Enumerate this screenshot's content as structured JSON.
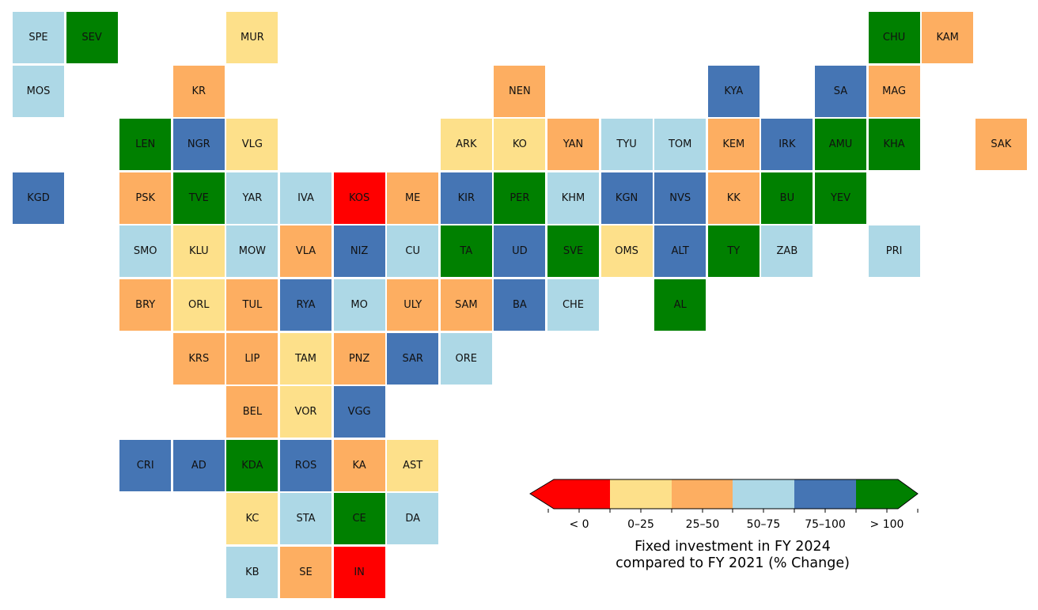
{
  "legend": {
    "title": "Fixed investment in FY 2024\ncompared to FY 2021 (% Change)",
    "categories": [
      {
        "key": "lt0",
        "label": "< 0",
        "color": "#ff0000"
      },
      {
        "key": "0-25",
        "label": "0–25",
        "color": "#fde08a"
      },
      {
        "key": "25-50",
        "label": "25–50",
        "color": "#fdae61"
      },
      {
        "key": "50-75",
        "label": "50–75",
        "color": "#add8e6"
      },
      {
        "key": "75-100",
        "label": "75–100",
        "color": "#4575b4"
      },
      {
        "key": "gt100",
        "label": "> 100",
        "color": "#008000"
      }
    ]
  },
  "regions": [
    {
      "code": "SPE",
      "row": 0,
      "col": 0,
      "cat": "50-75"
    },
    {
      "code": "SEV",
      "row": 0,
      "col": 1,
      "cat": "gt100"
    },
    {
      "code": "MUR",
      "row": 0,
      "col": 4,
      "cat": "0-25"
    },
    {
      "code": "CHU",
      "row": 0,
      "col": 16,
      "cat": "gt100"
    },
    {
      "code": "KAM",
      "row": 0,
      "col": 17,
      "cat": "25-50"
    },
    {
      "code": "MOS",
      "row": 1,
      "col": 0,
      "cat": "50-75"
    },
    {
      "code": "KR",
      "row": 1,
      "col": 3,
      "cat": "25-50"
    },
    {
      "code": "NEN",
      "row": 1,
      "col": 9,
      "cat": "25-50"
    },
    {
      "code": "KYA",
      "row": 1,
      "col": 13,
      "cat": "75-100"
    },
    {
      "code": "SA",
      "row": 1,
      "col": 15,
      "cat": "75-100"
    },
    {
      "code": "MAG",
      "row": 1,
      "col": 16,
      "cat": "25-50"
    },
    {
      "code": "LEN",
      "row": 2,
      "col": 2,
      "cat": "gt100"
    },
    {
      "code": "NGR",
      "row": 2,
      "col": 3,
      "cat": "75-100"
    },
    {
      "code": "VLG",
      "row": 2,
      "col": 4,
      "cat": "0-25"
    },
    {
      "code": "ARK",
      "row": 2,
      "col": 8,
      "cat": "0-25"
    },
    {
      "code": "KO",
      "row": 2,
      "col": 9,
      "cat": "0-25"
    },
    {
      "code": "YAN",
      "row": 2,
      "col": 10,
      "cat": "25-50"
    },
    {
      "code": "TYU",
      "row": 2,
      "col": 11,
      "cat": "50-75"
    },
    {
      "code": "TOM",
      "row": 2,
      "col": 12,
      "cat": "50-75"
    },
    {
      "code": "KEM",
      "row": 2,
      "col": 13,
      "cat": "25-50"
    },
    {
      "code": "IRK",
      "row": 2,
      "col": 14,
      "cat": "75-100"
    },
    {
      "code": "AMU",
      "row": 2,
      "col": 15,
      "cat": "gt100"
    },
    {
      "code": "KHA",
      "row": 2,
      "col": 16,
      "cat": "gt100"
    },
    {
      "code": "SAK",
      "row": 2,
      "col": 18,
      "cat": "25-50"
    },
    {
      "code": "KGD",
      "row": 3,
      "col": 0,
      "cat": "75-100"
    },
    {
      "code": "PSK",
      "row": 3,
      "col": 2,
      "cat": "25-50"
    },
    {
      "code": "TVE",
      "row": 3,
      "col": 3,
      "cat": "gt100"
    },
    {
      "code": "YAR",
      "row": 3,
      "col": 4,
      "cat": "50-75"
    },
    {
      "code": "IVA",
      "row": 3,
      "col": 5,
      "cat": "50-75"
    },
    {
      "code": "KOS",
      "row": 3,
      "col": 6,
      "cat": "lt0"
    },
    {
      "code": "ME",
      "row": 3,
      "col": 7,
      "cat": "25-50"
    },
    {
      "code": "KIR",
      "row": 3,
      "col": 8,
      "cat": "75-100"
    },
    {
      "code": "PER",
      "row": 3,
      "col": 9,
      "cat": "gt100"
    },
    {
      "code": "KHM",
      "row": 3,
      "col": 10,
      "cat": "50-75"
    },
    {
      "code": "KGN",
      "row": 3,
      "col": 11,
      "cat": "75-100"
    },
    {
      "code": "NVS",
      "row": 3,
      "col": 12,
      "cat": "75-100"
    },
    {
      "code": "KK",
      "row": 3,
      "col": 13,
      "cat": "25-50"
    },
    {
      "code": "BU",
      "row": 3,
      "col": 14,
      "cat": "gt100"
    },
    {
      "code": "YEV",
      "row": 3,
      "col": 15,
      "cat": "gt100"
    },
    {
      "code": "SMO",
      "row": 4,
      "col": 2,
      "cat": "50-75"
    },
    {
      "code": "KLU",
      "row": 4,
      "col": 3,
      "cat": "0-25"
    },
    {
      "code": "MOW",
      "row": 4,
      "col": 4,
      "cat": "50-75"
    },
    {
      "code": "VLA",
      "row": 4,
      "col": 5,
      "cat": "25-50"
    },
    {
      "code": "NIZ",
      "row": 4,
      "col": 6,
      "cat": "75-100"
    },
    {
      "code": "CU",
      "row": 4,
      "col": 7,
      "cat": "50-75"
    },
    {
      "code": "TA",
      "row": 4,
      "col": 8,
      "cat": "gt100"
    },
    {
      "code": "UD",
      "row": 4,
      "col": 9,
      "cat": "75-100"
    },
    {
      "code": "SVE",
      "row": 4,
      "col": 10,
      "cat": "gt100"
    },
    {
      "code": "OMS",
      "row": 4,
      "col": 11,
      "cat": "0-25"
    },
    {
      "code": "ALT",
      "row": 4,
      "col": 12,
      "cat": "75-100"
    },
    {
      "code": "TY",
      "row": 4,
      "col": 13,
      "cat": "gt100"
    },
    {
      "code": "ZAB",
      "row": 4,
      "col": 14,
      "cat": "50-75"
    },
    {
      "code": "PRI",
      "row": 4,
      "col": 16,
      "cat": "50-75"
    },
    {
      "code": "BRY",
      "row": 5,
      "col": 2,
      "cat": "25-50"
    },
    {
      "code": "ORL",
      "row": 5,
      "col": 3,
      "cat": "0-25"
    },
    {
      "code": "TUL",
      "row": 5,
      "col": 4,
      "cat": "25-50"
    },
    {
      "code": "RYA",
      "row": 5,
      "col": 5,
      "cat": "75-100"
    },
    {
      "code": "MO",
      "row": 5,
      "col": 6,
      "cat": "50-75"
    },
    {
      "code": "ULY",
      "row": 5,
      "col": 7,
      "cat": "25-50"
    },
    {
      "code": "SAM",
      "row": 5,
      "col": 8,
      "cat": "25-50"
    },
    {
      "code": "BA",
      "row": 5,
      "col": 9,
      "cat": "75-100"
    },
    {
      "code": "CHE",
      "row": 5,
      "col": 10,
      "cat": "50-75"
    },
    {
      "code": "AL",
      "row": 5,
      "col": 12,
      "cat": "gt100"
    },
    {
      "code": "KRS",
      "row": 6,
      "col": 3,
      "cat": "25-50"
    },
    {
      "code": "LIP",
      "row": 6,
      "col": 4,
      "cat": "25-50"
    },
    {
      "code": "TAM",
      "row": 6,
      "col": 5,
      "cat": "0-25"
    },
    {
      "code": "PNZ",
      "row": 6,
      "col": 6,
      "cat": "25-50"
    },
    {
      "code": "SAR",
      "row": 6,
      "col": 7,
      "cat": "75-100"
    },
    {
      "code": "ORE",
      "row": 6,
      "col": 8,
      "cat": "50-75"
    },
    {
      "code": "BEL",
      "row": 7,
      "col": 4,
      "cat": "25-50"
    },
    {
      "code": "VOR",
      "row": 7,
      "col": 5,
      "cat": "0-25"
    },
    {
      "code": "VGG",
      "row": 7,
      "col": 6,
      "cat": "75-100"
    },
    {
      "code": "CRI",
      "row": 8,
      "col": 2,
      "cat": "75-100"
    },
    {
      "code": "AD",
      "row": 8,
      "col": 3,
      "cat": "75-100"
    },
    {
      "code": "KDA",
      "row": 8,
      "col": 4,
      "cat": "gt100"
    },
    {
      "code": "ROS",
      "row": 8,
      "col": 5,
      "cat": "75-100"
    },
    {
      "code": "KA",
      "row": 8,
      "col": 6,
      "cat": "25-50"
    },
    {
      "code": "AST",
      "row": 8,
      "col": 7,
      "cat": "0-25"
    },
    {
      "code": "KC",
      "row": 9,
      "col": 4,
      "cat": "0-25"
    },
    {
      "code": "STA",
      "row": 9,
      "col": 5,
      "cat": "50-75"
    },
    {
      "code": "CE",
      "row": 9,
      "col": 6,
      "cat": "gt100"
    },
    {
      "code": "DA",
      "row": 9,
      "col": 7,
      "cat": "50-75"
    },
    {
      "code": "KB",
      "row": 10,
      "col": 4,
      "cat": "50-75"
    },
    {
      "code": "SE",
      "row": 10,
      "col": 5,
      "cat": "25-50"
    },
    {
      "code": "IN",
      "row": 10,
      "col": 6,
      "cat": "lt0"
    }
  ]
}
